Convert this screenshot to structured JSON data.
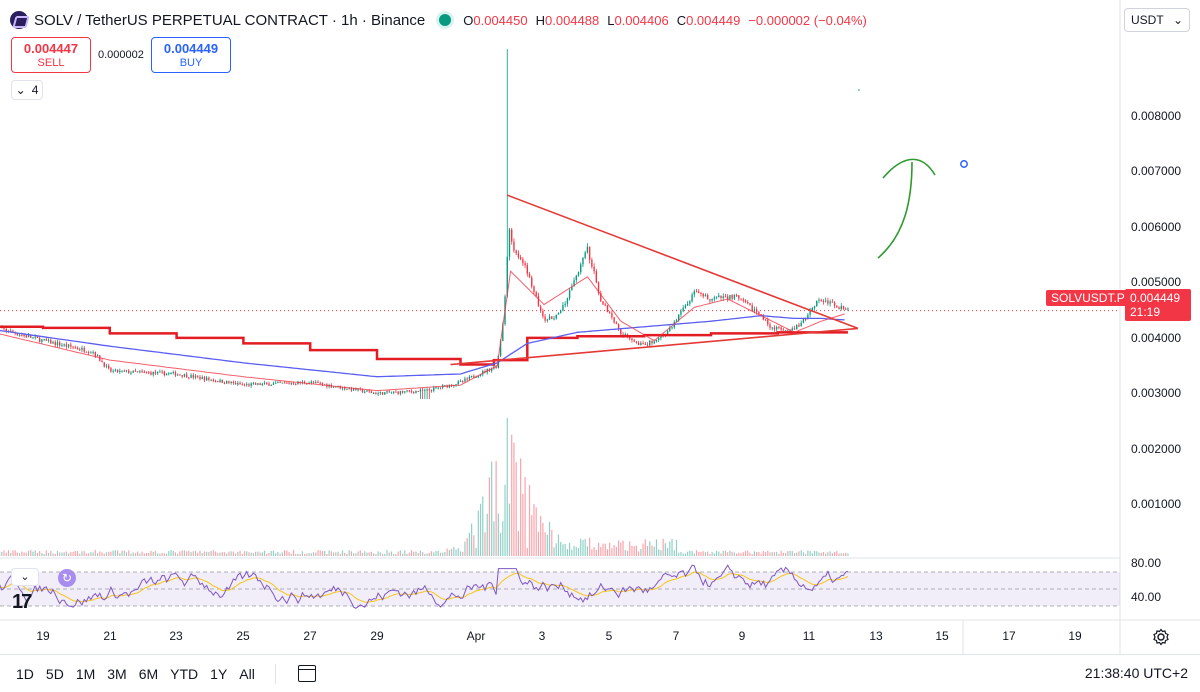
{
  "header": {
    "symbol_title": "SOLV / TetherUS PERPETUAL CONTRACT · 1h · Binance",
    "ohlc": {
      "o_label": "O",
      "o": "0.004450",
      "h_label": "H",
      "h": "0.004488",
      "l_label": "L",
      "l": "0.004406",
      "c_label": "C",
      "c": "0.004449",
      "change": "−0.000002 (−0.04%)"
    },
    "live_color": "#089981"
  },
  "trade": {
    "sell_price": "0.004447",
    "sell_label": "SELL",
    "spread": "0.000002",
    "buy_price": "0.004449",
    "buy_label": "BUY"
  },
  "indicators_toggle": {
    "count": "4",
    "icon": "chevron-down-icon"
  },
  "currency": {
    "label": "USDT",
    "icon": "chevron-down-icon"
  },
  "price_axis": {
    "labels": [
      "0.008000",
      "0.007000",
      "0.006000",
      "0.005000",
      "0.004000",
      "0.003000",
      "0.002000",
      "0.001000"
    ]
  },
  "current_price": {
    "symbol_tag": "SOLVUSDT.P",
    "price": "0.004449",
    "countdown": "21:19"
  },
  "rsi_axis": {
    "labels": [
      "80.00",
      "40.00"
    ]
  },
  "time_axis": {
    "labels": [
      "19",
      "21",
      "23",
      "25",
      "27",
      "29",
      "Apr",
      "3",
      "5",
      "7",
      "9",
      "11",
      "13",
      "15",
      "17",
      "19"
    ]
  },
  "bottom_bar": {
    "ranges": [
      "1D",
      "5D",
      "1M",
      "3M",
      "6M",
      "YTD",
      "1Y",
      "All"
    ],
    "clock": "21:38:40 UTC+2"
  },
  "colors": {
    "up": "#089981",
    "down": "#f23645",
    "ema_fast": "#f23645",
    "ma_slow": "#5b5ff0",
    "support": "#e31b23",
    "rsi": "#7e57c2",
    "rsi_ma": "#f5c518",
    "annotation": "#2e9b2e"
  },
  "chart_data": {
    "type": "candlestick",
    "symbol": "SOLVUSDT.P",
    "interval": "1h",
    "ylim": [
      0.0,
      0.0094
    ],
    "x_axis_ticks": [
      "19",
      "21",
      "23",
      "25",
      "27",
      "29",
      "Apr",
      "3",
      "5",
      "7",
      "9",
      "11",
      "13",
      "15",
      "17",
      "19"
    ],
    "price_trend": {
      "days": [
        17.5,
        19,
        20.5,
        21,
        23,
        25,
        27,
        29,
        30.5,
        31.5,
        32.6,
        32.8,
        32.95,
        33.1,
        33.5,
        34,
        34.5,
        35.3,
        35.7,
        36.3,
        37,
        37.7,
        38.5,
        39,
        39.7,
        40.3,
        40.8,
        41.3,
        41.7,
        42.2,
        42.7,
        43.1
      ],
      "close": [
        0.0042,
        0.00395,
        0.00375,
        0.0034,
        0.00335,
        0.00315,
        0.0032,
        0.003,
        0.00305,
        0.0032,
        0.0035,
        0.0044,
        0.006,
        0.0056,
        0.0052,
        0.0043,
        0.00445,
        0.0056,
        0.0047,
        0.0041,
        0.00385,
        0.0041,
        0.0048,
        0.0047,
        0.00475,
        0.0045,
        0.0042,
        0.0041,
        0.00425,
        0.0047,
        0.0046,
        0.00449
      ],
      "high_spike": 0.0092,
      "low_min": 0.0029
    },
    "ema_line": {
      "days": [
        17.5,
        21,
        25,
        29,
        31.5,
        32.6,
        33,
        34,
        35.3,
        36.3,
        37.3,
        38.5,
        39.5,
        40.5,
        41.5,
        42.3,
        43.1
      ],
      "values": [
        0.0041,
        0.0036,
        0.0033,
        0.00305,
        0.00315,
        0.0035,
        0.0052,
        0.0046,
        0.0051,
        0.0043,
        0.00395,
        0.00455,
        0.0047,
        0.0044,
        0.0041,
        0.0043,
        0.00445
      ]
    },
    "ma_line": {
      "days": [
        17.5,
        21,
        25,
        29,
        31.5,
        32.6,
        33.5,
        35,
        37,
        39,
        40.5,
        41.5,
        42.3,
        43.1
      ],
      "values": [
        0.00415,
        0.00385,
        0.00355,
        0.0033,
        0.00335,
        0.00355,
        0.0039,
        0.0041,
        0.0042,
        0.0043,
        0.0044,
        0.00435,
        0.00435,
        0.00432
      ]
    },
    "support_steps": {
      "days": [
        17.5,
        19,
        21,
        23,
        25,
        27,
        29,
        31.5,
        32.5,
        33.5,
        35,
        37,
        39,
        41,
        43.1
      ],
      "values": [
        0.0042,
        0.00418,
        0.00408,
        0.004,
        0.0039,
        0.00378,
        0.00362,
        0.00352,
        0.0036,
        0.004,
        0.00403,
        0.00405,
        0.00408,
        0.0041,
        0.0041
      ]
    },
    "triangle": {
      "upper": {
        "start": [
          32.9,
          0.00657
        ],
        "end": [
          43.4,
          0.00417
        ]
      },
      "lower": {
        "start": [
          31.2,
          0.00352
        ],
        "end": [
          43.4,
          0.00417
        ]
      }
    },
    "volume_spike_day": 32.9,
    "rsi": {
      "levels": [
        70,
        50,
        30
      ],
      "axis_ticks": [
        80,
        40
      ],
      "last": 55
    }
  }
}
